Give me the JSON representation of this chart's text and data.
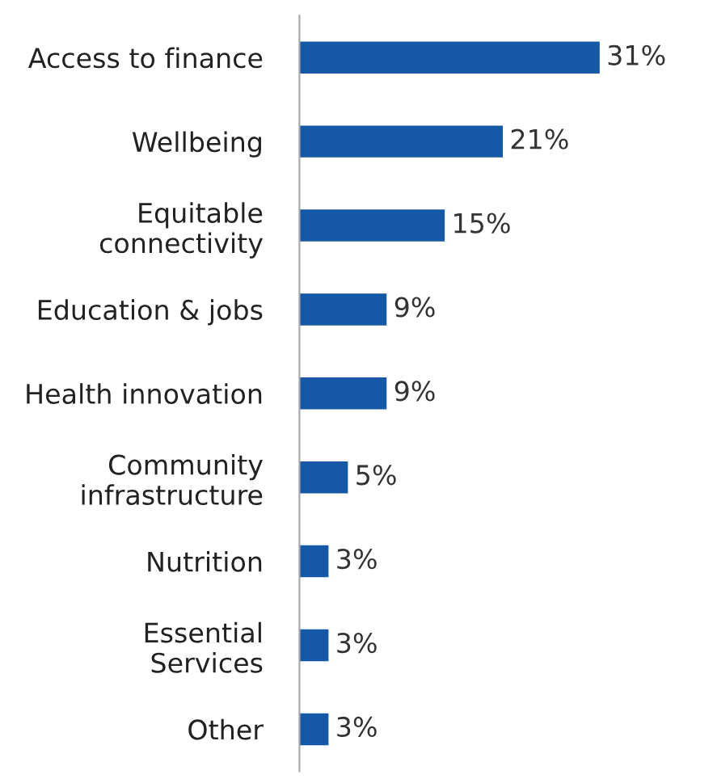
{
  "chart_data": {
    "type": "bar",
    "orientation": "horizontal",
    "categories": [
      "Access to finance",
      "Wellbeing",
      "Equitable\nconnectivity",
      "Education & jobs",
      "Health innovation",
      "Community\ninfrastructure",
      "Nutrition",
      "Essential\nServices",
      "Other"
    ],
    "values": [
      31,
      21,
      15,
      9,
      9,
      5,
      3,
      3,
      3
    ],
    "value_labels": [
      "31%",
      "21%",
      "15%",
      "9%",
      "9%",
      "5%",
      "3%",
      "3%",
      "3%"
    ],
    "color": "#1458a6",
    "grid": false,
    "tick_labels": "y"
  }
}
